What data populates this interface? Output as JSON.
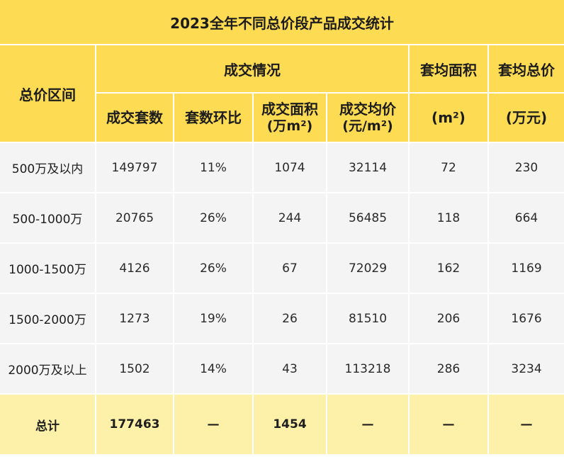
{
  "title": "2023全年不同总价段产品成交统计",
  "header": {
    "price_range": "总价区间",
    "deal_info": "成交情况",
    "avg_area": "套均面积",
    "avg_total": "套均总价",
    "deal_units": "成交套数",
    "mom_units": "套数环比",
    "deal_area_line1": "成交面积",
    "deal_area_line2": "(万m²)",
    "avg_price_line1": "成交均价",
    "avg_price_line2": "(元/m²)",
    "avg_area_unit": "(m²)",
    "avg_total_unit": "(万元)"
  },
  "chart_data": {
    "type": "table",
    "title": "2023全年不同总价段产品成交统计",
    "columns": [
      "总价区间",
      "成交套数",
      "套数环比",
      "成交面积(万m²)",
      "成交均价(元/m²)",
      "套均面积(m²)",
      "套均总价(万元)"
    ],
    "rows": [
      [
        "500万及以内",
        "149797",
        "11%",
        "1074",
        "32114",
        "72",
        "230"
      ],
      [
        "500-1000万",
        "20765",
        "26%",
        "244",
        "56485",
        "118",
        "664"
      ],
      [
        "1000-1500万",
        "4126",
        "26%",
        "67",
        "72029",
        "162",
        "1169"
      ],
      [
        "1500-2000万",
        "1273",
        "19%",
        "26",
        "81510",
        "206",
        "1676"
      ],
      [
        "2000万及以上",
        "1502",
        "14%",
        "43",
        "113218",
        "286",
        "3234"
      ]
    ],
    "total": [
      "总计",
      "177463",
      "—",
      "1454",
      "—",
      "—",
      "—"
    ]
  }
}
